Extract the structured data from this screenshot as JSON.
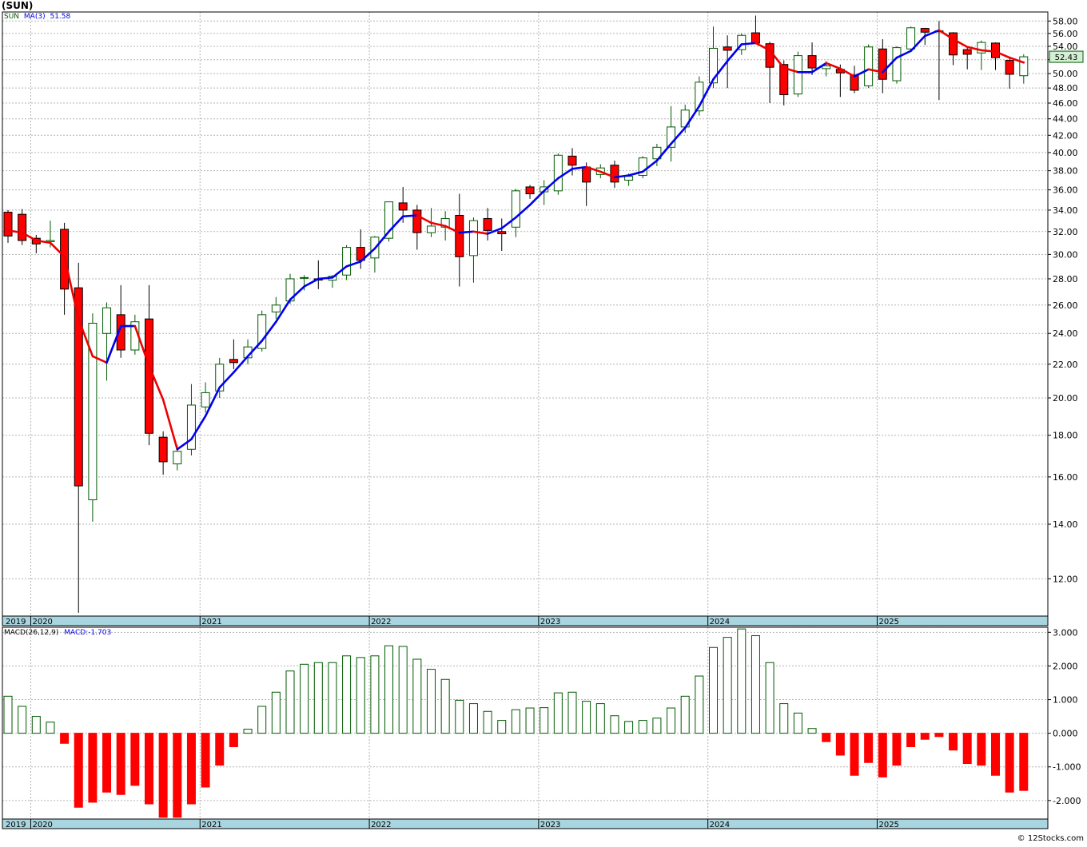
{
  "header": {
    "title": "(SUN)",
    "legend_symbol": "SUN",
    "legend_ma_label": "MA(3)",
    "legend_ma_value": "51.58",
    "last_price_tag": "52.43"
  },
  "macd_legend": {
    "label": "MACD(26,12,9)",
    "value_label": "MACD:-1.703"
  },
  "credit": "© 12Stocks.com",
  "colors": {
    "up": "#005a00",
    "down": "#ff0000",
    "ma_up": "#0000ee",
    "ma_down": "#ee0000",
    "axis_bar": "#a9d5e0",
    "grid": "#b4b4b4",
    "price_tag_bg": "#d4f0d4"
  },
  "chart_data": [
    {
      "type": "candlestick",
      "symbol": "SUN",
      "scale": "log",
      "ylim": [
        10.8,
        59.5
      ],
      "y_ticks": [
        "12.00",
        "14.00",
        "16.00",
        "18.00",
        "20.00",
        "22.00",
        "24.00",
        "26.00",
        "28.00",
        "30.00",
        "32.00",
        "34.00",
        "36.00",
        "38.00",
        "40.00",
        "42.00",
        "44.00",
        "46.00",
        "48.00",
        "50.00",
        "52.00",
        "54.00",
        "56.00",
        "58.00"
      ],
      "x_ticks": [
        "2019",
        "2020",
        "2021",
        "2022",
        "2023",
        "2024",
        "2025"
      ],
      "period": "monthly",
      "start": "2019-11",
      "candles": [
        [
          33.8,
          34.0,
          31.0,
          31.6
        ],
        [
          33.6,
          34.1,
          30.8,
          31.2
        ],
        [
          31.4,
          31.7,
          30.1,
          30.9
        ],
        [
          31.1,
          33.0,
          30.6,
          31.2
        ],
        [
          32.2,
          32.8,
          25.3,
          27.2
        ],
        [
          27.3,
          29.3,
          10.9,
          15.6
        ],
        [
          15.0,
          25.4,
          14.1,
          24.7
        ],
        [
          24.0,
          26.2,
          21.0,
          25.8
        ],
        [
          25.3,
          27.5,
          22.4,
          22.9
        ],
        [
          22.9,
          25.3,
          22.6,
          24.8
        ],
        [
          25.0,
          27.5,
          17.5,
          18.1
        ],
        [
          17.9,
          18.2,
          16.1,
          16.7
        ],
        [
          16.6,
          17.5,
          16.3,
          17.2
        ],
        [
          17.3,
          20.8,
          17.0,
          19.6
        ],
        [
          19.5,
          20.9,
          19.2,
          20.3
        ],
        [
          20.4,
          22.4,
          20.0,
          22.0
        ],
        [
          22.3,
          23.6,
          21.7,
          22.1
        ],
        [
          22.4,
          23.6,
          22.0,
          23.1
        ],
        [
          23.0,
          25.6,
          22.8,
          25.3
        ],
        [
          25.5,
          26.6,
          25.0,
          26.0
        ],
        [
          26.3,
          28.4,
          26.1,
          28.0
        ],
        [
          28.1,
          28.3,
          27.1,
          28.1
        ],
        [
          28.0,
          29.5,
          27.2,
          27.9
        ],
        [
          27.9,
          28.3,
          27.3,
          28.2
        ],
        [
          28.3,
          30.8,
          27.9,
          30.6
        ],
        [
          30.6,
          32.2,
          28.8,
          29.5
        ],
        [
          29.7,
          31.6,
          28.5,
          31.5
        ],
        [
          31.4,
          34.6,
          31.1,
          34.8
        ],
        [
          34.7,
          36.3,
          32.8,
          34.0
        ],
        [
          34.0,
          34.5,
          30.4,
          31.9
        ],
        [
          31.9,
          34.2,
          31.5,
          32.5
        ],
        [
          32.4,
          33.9,
          31.2,
          33.2
        ],
        [
          33.5,
          35.6,
          27.4,
          29.8
        ],
        [
          29.9,
          33.3,
          27.7,
          33.0
        ],
        [
          33.2,
          34.2,
          31.2,
          32.1
        ],
        [
          32.0,
          33.2,
          30.3,
          31.8
        ],
        [
          32.4,
          36.1,
          31.5,
          35.9
        ],
        [
          36.3,
          36.5,
          35.1,
          35.6
        ],
        [
          35.8,
          37.0,
          34.5,
          36.3
        ],
        [
          35.9,
          39.9,
          35.5,
          39.7
        ],
        [
          39.6,
          40.5,
          37.5,
          38.6
        ],
        [
          38.4,
          38.9,
          34.4,
          36.8
        ],
        [
          37.6,
          38.7,
          37.2,
          38.3
        ],
        [
          38.6,
          39.1,
          36.2,
          36.8
        ],
        [
          37.0,
          37.7,
          36.4,
          37.4
        ],
        [
          37.5,
          39.6,
          37.2,
          39.4
        ],
        [
          39.3,
          41.0,
          38.5,
          40.6
        ],
        [
          40.6,
          45.6,
          39.0,
          43.0
        ],
        [
          43.0,
          45.8,
          42.3,
          45.1
        ],
        [
          45.0,
          49.6,
          44.4,
          48.8
        ],
        [
          48.7,
          57.1,
          48.0,
          53.7
        ],
        [
          53.9,
          55.7,
          48.0,
          53.4
        ],
        [
          53.5,
          56.0,
          52.7,
          55.7
        ],
        [
          56.1,
          58.9,
          54.3,
          54.5
        ],
        [
          54.4,
          54.7,
          46.0,
          50.9
        ],
        [
          51.3,
          51.9,
          45.7,
          47.1
        ],
        [
          47.2,
          53.2,
          46.8,
          52.6
        ],
        [
          52.6,
          54.6,
          49.8,
          50.8
        ],
        [
          50.7,
          51.8,
          49.6,
          51.1
        ],
        [
          50.6,
          51.3,
          46.8,
          50.1
        ],
        [
          49.8,
          51.1,
          47.3,
          47.7
        ],
        [
          48.3,
          54.3,
          48.0,
          53.9
        ],
        [
          53.6,
          55.1,
          47.3,
          49.2
        ],
        [
          49.0,
          54.0,
          48.6,
          53.8
        ],
        [
          53.6,
          57.1,
          53.3,
          56.9
        ],
        [
          56.8,
          56.9,
          54.2,
          56.2
        ],
        [
          56.4,
          58.0,
          46.4,
          56.3
        ],
        [
          56.1,
          56.2,
          51.2,
          52.7
        ],
        [
          53.5,
          53.9,
          50.6,
          52.8
        ],
        [
          53.0,
          54.9,
          50.5,
          54.6
        ],
        [
          54.5,
          54.6,
          50.5,
          52.3
        ],
        [
          51.9,
          52.4,
          47.9,
          49.9
        ],
        [
          49.7,
          52.8,
          48.6,
          52.43
        ]
      ]
    },
    {
      "type": "line",
      "name": "MA(3)",
      "values": [
        32.1,
        31.9,
        31.2,
        31.0,
        29.8,
        25.0,
        22.5,
        22.1,
        24.5,
        24.5,
        21.9,
        19.9,
        17.3,
        17.8,
        19.0,
        20.6,
        21.5,
        22.5,
        23.5,
        24.8,
        26.4,
        27.4,
        28.0,
        28.1,
        29.0,
        29.4,
        30.5,
        32.0,
        33.4,
        33.5,
        32.8,
        32.5,
        31.9,
        32.0,
        31.8,
        32.3,
        33.3,
        34.5,
        35.9,
        37.2,
        38.2,
        38.4,
        37.9,
        37.3,
        37.5,
        37.9,
        39.1,
        41.0,
        42.9,
        45.6,
        49.2,
        51.8,
        54.3,
        54.5,
        53.4,
        50.8,
        50.2,
        50.2,
        51.5,
        50.7,
        49.6,
        50.6,
        50.2,
        52.3,
        53.3,
        55.6,
        56.5,
        55.1,
        53.9,
        53.4,
        53.2,
        52.3,
        51.58
      ]
    },
    {
      "type": "bar",
      "name": "MACD(26,12,9)",
      "ylim": [
        -2.55,
        3.15
      ],
      "y_ticks": [
        "3.000",
        "2.000",
        "1.000",
        "0.000",
        "-1.000",
        "-2.000"
      ],
      "x_ticks": [
        "2019",
        "2020",
        "2021",
        "2022",
        "2023",
        "2024",
        "2025"
      ],
      "values": [
        1.1,
        0.8,
        0.5,
        0.33,
        -0.3,
        -2.2,
        -2.05,
        -1.75,
        -1.82,
        -1.55,
        -2.1,
        -2.5,
        -2.5,
        -2.1,
        -1.6,
        -0.95,
        -0.4,
        0.12,
        0.8,
        1.22,
        1.85,
        2.05,
        2.1,
        2.1,
        2.3,
        2.25,
        2.3,
        2.6,
        2.58,
        2.2,
        1.9,
        1.6,
        0.98,
        0.88,
        0.65,
        0.38,
        0.7,
        0.75,
        0.76,
        1.2,
        1.22,
        0.95,
        0.88,
        0.52,
        0.35,
        0.38,
        0.45,
        0.75,
        1.1,
        1.7,
        2.55,
        2.85,
        3.1,
        2.9,
        2.1,
        0.88,
        0.6,
        0.14,
        -0.25,
        -0.65,
        -1.25,
        -0.87,
        -1.3,
        -0.95,
        -0.4,
        -0.18,
        -0.1,
        -0.5,
        -0.9,
        -0.95,
        -1.25,
        -1.75,
        -1.7
      ]
    }
  ]
}
